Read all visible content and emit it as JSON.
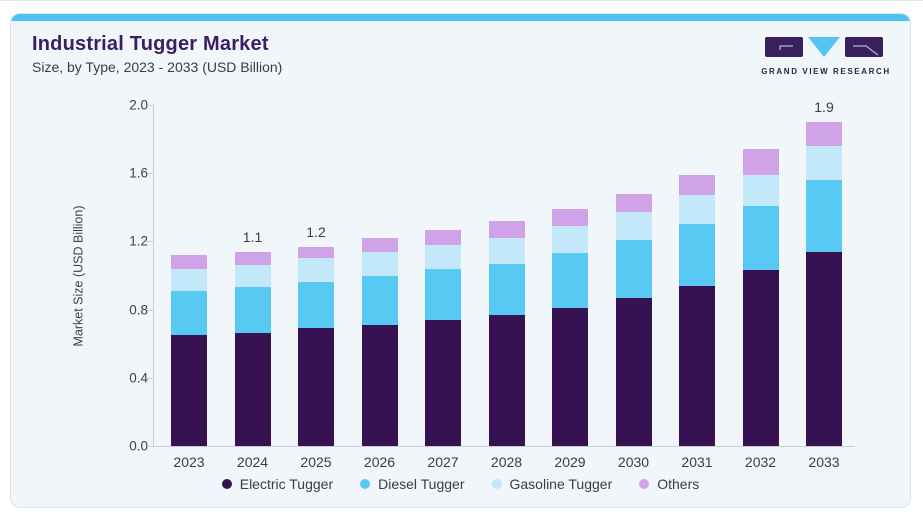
{
  "header": {
    "title": "Industrial Tugger Market",
    "subtitle": "Size, by Type, 2023 - 2033 (USD Billion)"
  },
  "logo": {
    "name": "GRAND VIEW RESEARCH"
  },
  "colors": {
    "accent_bar": "#4cc3f2",
    "card_background": "#f1f6fa",
    "card_border": "#dde3e9",
    "title_text": "#3a1d63",
    "body_text": "#3c3c44",
    "axis_line": "#c9cfd6",
    "logo_purple": "#3b2060",
    "logo_cyan": "#55c5f0"
  },
  "chart_data": {
    "type": "bar",
    "stacked": true,
    "title": "Industrial Tugger Market Size, by Type, 2023 - 2033 (USD Billion)",
    "categories": [
      "2023",
      "2024",
      "2025",
      "2026",
      "2027",
      "2028",
      "2029",
      "2030",
      "2031",
      "2032",
      "2033"
    ],
    "series": [
      {
        "name": "Electric Tugger",
        "color": "#361253",
        "values": [
          0.65,
          0.66,
          0.69,
          0.71,
          0.74,
          0.77,
          0.81,
          0.87,
          0.94,
          1.03,
          1.14
        ]
      },
      {
        "name": "Diesel Tugger",
        "color": "#57c9f2",
        "values": [
          0.26,
          0.27,
          0.27,
          0.29,
          0.3,
          0.3,
          0.32,
          0.34,
          0.36,
          0.38,
          0.42
        ]
      },
      {
        "name": "Gasoline Tugger",
        "color": "#c2e8f9",
        "values": [
          0.13,
          0.13,
          0.14,
          0.14,
          0.14,
          0.15,
          0.16,
          0.16,
          0.17,
          0.18,
          0.2
        ]
      },
      {
        "name": "Others",
        "color": "#d0a3e8",
        "values": [
          0.08,
          0.08,
          0.07,
          0.08,
          0.09,
          0.1,
          0.1,
          0.11,
          0.12,
          0.15,
          0.14
        ]
      }
    ],
    "bar_total_labels": {
      "2024": "1.1",
      "2025": "1.2",
      "2033": "1.9"
    },
    "xlabel": "",
    "ylabel": "Market Size (USD Billion)",
    "ylim": [
      0,
      2.0
    ],
    "ytick_labels": [
      "0.0",
      "0.4",
      "0.8",
      "1.2",
      "1.6",
      "2.0"
    ],
    "grid": false,
    "legend_position": "bottom",
    "legend": [
      "Electric Tugger",
      "Diesel Tugger",
      "Gasoline Tugger",
      "Others"
    ]
  }
}
